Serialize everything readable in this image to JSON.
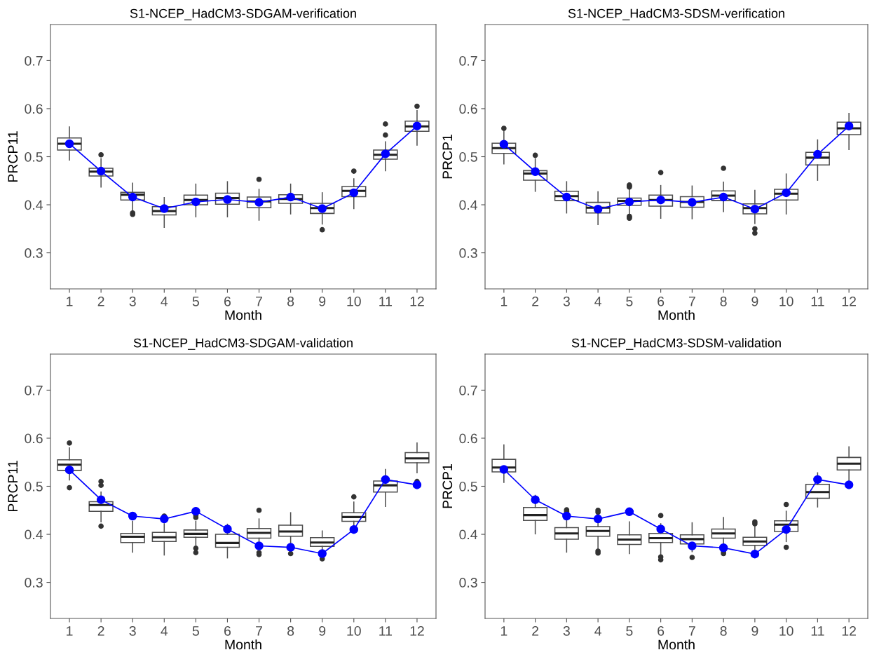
{
  "chart_data": [
    {
      "type": "box",
      "title": "S1-NCEP_HadCM3-SDGAM-verification",
      "xlabel": "Month",
      "ylabel": "PRCP11",
      "categories": [
        "1",
        "2",
        "3",
        "4",
        "5",
        "6",
        "7",
        "8",
        "9",
        "10",
        "11",
        "12"
      ],
      "ylim": [
        0.225,
        0.775
      ],
      "yticks": [
        0.3,
        0.4,
        0.5,
        0.6,
        0.7
      ],
      "boxes": [
        {
          "low": 0.493,
          "q1": 0.514,
          "median": 0.527,
          "q3": 0.539,
          "high": 0.562
        },
        {
          "low": 0.437,
          "q1": 0.46,
          "median": 0.469,
          "q3": 0.476,
          "high": 0.496,
          "outliers": [
            0.504
          ]
        },
        {
          "low": 0.386,
          "q1": 0.41,
          "median": 0.421,
          "q3": 0.426,
          "high": 0.445,
          "outliers": [
            0.383,
            0.38
          ]
        },
        {
          "low": 0.353,
          "q1": 0.379,
          "median": 0.387,
          "q3": 0.396,
          "high": 0.415
        },
        {
          "low": 0.375,
          "q1": 0.4,
          "median": 0.41,
          "q3": 0.42,
          "high": 0.443
        },
        {
          "low": 0.375,
          "q1": 0.401,
          "median": 0.414,
          "q3": 0.424,
          "high": 0.448
        },
        {
          "low": 0.368,
          "q1": 0.394,
          "median": 0.407,
          "q3": 0.416,
          "high": 0.432,
          "outliers": [
            0.453
          ]
        },
        {
          "low": 0.381,
          "q1": 0.403,
          "median": 0.412,
          "q3": 0.421,
          "high": 0.443
        },
        {
          "low": 0.36,
          "q1": 0.382,
          "median": 0.393,
          "q3": 0.403,
          "high": 0.425,
          "outliers": [
            0.348
          ]
        },
        {
          "low": 0.392,
          "q1": 0.417,
          "median": 0.429,
          "q3": 0.438,
          "high": 0.454,
          "outliers": [
            0.47
          ]
        },
        {
          "low": 0.471,
          "q1": 0.495,
          "median": 0.504,
          "q3": 0.514,
          "high": 0.531,
          "outliers": [
            0.568,
            0.545
          ]
        },
        {
          "low": 0.524,
          "q1": 0.553,
          "median": 0.563,
          "q3": 0.574,
          "high": 0.596,
          "outliers": [
            0.605
          ]
        }
      ],
      "series": [
        {
          "type": "line",
          "color": "#0000ff",
          "marker": "circle",
          "values": [
            0.527,
            0.47,
            0.416,
            0.392,
            0.406,
            0.411,
            0.405,
            0.416,
            0.392,
            0.425,
            0.506,
            0.564
          ]
        }
      ]
    },
    {
      "type": "box",
      "title": "S1-NCEP_HadCM3-SDSM-verification",
      "xlabel": "Month",
      "ylabel": "PRCP1",
      "categories": [
        "1",
        "2",
        "3",
        "4",
        "5",
        "6",
        "7",
        "8",
        "9",
        "10",
        "11",
        "12"
      ],
      "ylim": [
        0.225,
        0.775
      ],
      "yticks": [
        0.3,
        0.4,
        0.5,
        0.6,
        0.7
      ],
      "boxes": [
        {
          "low": 0.485,
          "q1": 0.507,
          "median": 0.518,
          "q3": 0.528,
          "high": 0.553,
          "outliers": [
            0.559
          ]
        },
        {
          "low": 0.428,
          "q1": 0.451,
          "median": 0.465,
          "q3": 0.471,
          "high": 0.496,
          "outliers": [
            0.503
          ]
        },
        {
          "low": 0.383,
          "q1": 0.409,
          "median": 0.418,
          "q3": 0.428,
          "high": 0.448
        },
        {
          "low": 0.359,
          "q1": 0.383,
          "median": 0.394,
          "q3": 0.405,
          "high": 0.427
        },
        {
          "low": 0.379,
          "q1": 0.399,
          "median": 0.408,
          "q3": 0.414,
          "high": 0.434,
          "outliers": [
            0.441,
            0.439,
            0.437,
            0.376,
            0.374,
            0.372
          ]
        },
        {
          "low": 0.372,
          "q1": 0.397,
          "median": 0.41,
          "q3": 0.42,
          "high": 0.44,
          "outliers": [
            0.467
          ]
        },
        {
          "low": 0.371,
          "q1": 0.395,
          "median": 0.406,
          "q3": 0.417,
          "high": 0.439
        },
        {
          "low": 0.386,
          "q1": 0.409,
          "median": 0.419,
          "q3": 0.429,
          "high": 0.447,
          "outliers": [
            0.476
          ]
        },
        {
          "low": 0.361,
          "q1": 0.381,
          "median": 0.393,
          "q3": 0.402,
          "high": 0.43,
          "outliers": [
            0.35,
            0.341
          ]
        },
        {
          "low": 0.381,
          "q1": 0.41,
          "median": 0.423,
          "q3": 0.432,
          "high": 0.464
        },
        {
          "low": 0.451,
          "q1": 0.483,
          "median": 0.498,
          "q3": 0.509,
          "high": 0.535
        },
        {
          "low": 0.515,
          "q1": 0.546,
          "median": 0.559,
          "q3": 0.572,
          "high": 0.59
        }
      ],
      "series": [
        {
          "type": "line",
          "color": "#0000ff",
          "marker": "circle",
          "values": [
            0.526,
            0.469,
            0.416,
            0.391,
            0.406,
            0.41,
            0.405,
            0.416,
            0.391,
            0.425,
            0.505,
            0.564
          ]
        }
      ]
    },
    {
      "type": "box",
      "title": "S1-NCEP_HadCM3-SDGAM-validation",
      "xlabel": "Month",
      "ylabel": "PRCP11",
      "categories": [
        "1",
        "2",
        "3",
        "4",
        "5",
        "6",
        "7",
        "8",
        "9",
        "10",
        "11",
        "12"
      ],
      "ylim": [
        0.225,
        0.775
      ],
      "yticks": [
        0.3,
        0.4,
        0.5,
        0.6,
        0.7
      ],
      "boxes": [
        {
          "low": 0.513,
          "q1": 0.533,
          "median": 0.545,
          "q3": 0.555,
          "high": 0.58,
          "outliers": [
            0.59,
            0.497
          ]
        },
        {
          "low": 0.426,
          "q1": 0.448,
          "median": 0.461,
          "q3": 0.468,
          "high": 0.488,
          "outliers": [
            0.51,
            0.502,
            0.417
          ]
        },
        {
          "low": 0.363,
          "q1": 0.383,
          "median": 0.395,
          "q3": 0.402,
          "high": 0.427
        },
        {
          "low": 0.357,
          "q1": 0.385,
          "median": 0.394,
          "q3": 0.404,
          "high": 0.422,
          "outliers": [
            0.438
          ]
        },
        {
          "low": 0.378,
          "q1": 0.394,
          "median": 0.401,
          "q3": 0.409,
          "high": 0.427,
          "outliers": [
            0.439,
            0.435,
            0.371,
            0.362
          ]
        },
        {
          "low": 0.351,
          "q1": 0.373,
          "median": 0.382,
          "q3": 0.4,
          "high": 0.421
        },
        {
          "low": 0.374,
          "q1": 0.392,
          "median": 0.403,
          "q3": 0.412,
          "high": 0.432,
          "outliers": [
            0.45,
            0.362,
            0.358
          ]
        },
        {
          "low": 0.379,
          "q1": 0.396,
          "median": 0.406,
          "q3": 0.419,
          "high": 0.445,
          "outliers": [
            0.36
          ]
        },
        {
          "low": 0.366,
          "q1": 0.375,
          "median": 0.383,
          "q3": 0.393,
          "high": 0.407,
          "outliers": [
            0.349
          ]
        },
        {
          "low": 0.417,
          "q1": 0.427,
          "median": 0.436,
          "q3": 0.445,
          "high": 0.467,
          "outliers": [
            0.478
          ]
        },
        {
          "low": 0.458,
          "q1": 0.488,
          "median": 0.502,
          "q3": 0.511,
          "high": 0.535
        },
        {
          "low": 0.528,
          "q1": 0.549,
          "median": 0.558,
          "q3": 0.57,
          "high": 0.59,
          "outliers": [
            0.51
          ]
        }
      ],
      "series": [
        {
          "type": "line",
          "color": "#0000ff",
          "marker": "circle",
          "values": [
            0.534,
            0.472,
            0.438,
            0.432,
            0.448,
            0.411,
            0.376,
            0.373,
            0.36,
            0.41,
            0.514,
            0.503
          ]
        }
      ]
    },
    {
      "type": "box",
      "title": "S1-NCEP_HadCM3-SDSM-validation",
      "xlabel": "Month",
      "ylabel": "PRCP1",
      "categories": [
        "1",
        "2",
        "3",
        "4",
        "5",
        "6",
        "7",
        "8",
        "9",
        "10",
        "11",
        "12"
      ],
      "ylim": [
        0.225,
        0.775
      ],
      "yticks": [
        0.3,
        0.4,
        0.5,
        0.6,
        0.7
      ],
      "boxes": [
        {
          "low": 0.508,
          "q1": 0.53,
          "median": 0.539,
          "q3": 0.556,
          "high": 0.586
        },
        {
          "low": 0.401,
          "q1": 0.429,
          "median": 0.44,
          "q3": 0.456,
          "high": 0.481
        },
        {
          "low": 0.363,
          "q1": 0.39,
          "median": 0.402,
          "q3": 0.414,
          "high": 0.439,
          "outliers": [
            0.451,
            0.448
          ]
        },
        {
          "low": 0.37,
          "q1": 0.396,
          "median": 0.407,
          "q3": 0.416,
          "high": 0.441,
          "outliers": [
            0.45,
            0.446,
            0.365,
            0.361
          ]
        },
        {
          "low": 0.36,
          "q1": 0.379,
          "median": 0.389,
          "q3": 0.399,
          "high": 0.426
        },
        {
          "low": 0.355,
          "q1": 0.383,
          "median": 0.392,
          "q3": 0.402,
          "high": 0.422,
          "outliers": [
            0.439,
            0.353,
            0.347
          ]
        },
        {
          "low": 0.364,
          "q1": 0.38,
          "median": 0.39,
          "q3": 0.399,
          "high": 0.424,
          "outliers": [
            0.352
          ]
        },
        {
          "low": 0.37,
          "q1": 0.392,
          "median": 0.402,
          "q3": 0.411,
          "high": 0.435,
          "outliers": [
            0.364,
            0.36
          ]
        },
        {
          "low": 0.367,
          "q1": 0.377,
          "median": 0.385,
          "q3": 0.394,
          "high": 0.418,
          "outliers": [
            0.426,
            0.422
          ]
        },
        {
          "low": 0.385,
          "q1": 0.406,
          "median": 0.42,
          "q3": 0.428,
          "high": 0.448,
          "outliers": [
            0.462,
            0.373
          ]
        },
        {
          "low": 0.457,
          "q1": 0.475,
          "median": 0.488,
          "q3": 0.504,
          "high": 0.528
        },
        {
          "low": 0.508,
          "q1": 0.534,
          "median": 0.547,
          "q3": 0.56,
          "high": 0.582
        }
      ],
      "series": [
        {
          "type": "line",
          "color": "#0000ff",
          "marker": "circle",
          "values": [
            0.535,
            0.472,
            0.438,
            0.432,
            0.447,
            0.411,
            0.376,
            0.372,
            0.359,
            0.41,
            0.514,
            0.503
          ]
        }
      ]
    }
  ]
}
